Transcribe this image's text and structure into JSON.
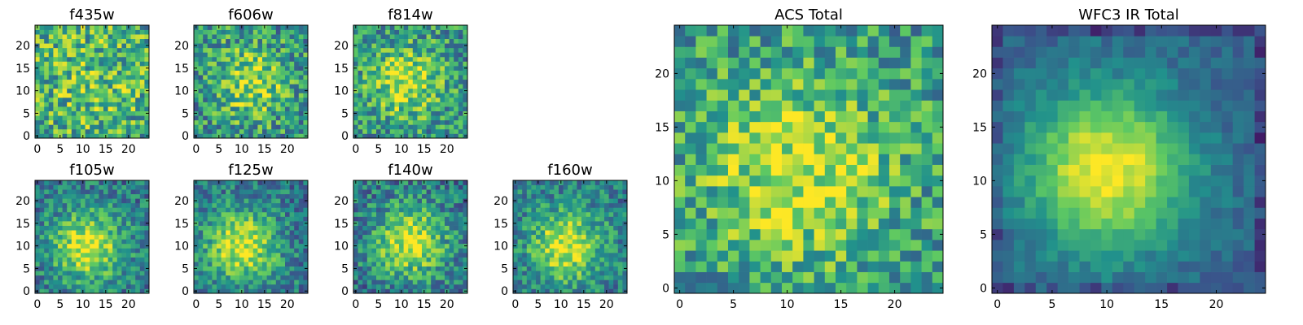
{
  "chart_data": {
    "type": "heatmap",
    "colormap": "viridis",
    "colormap_stops": [
      "#440154",
      "#3b528b",
      "#21918c",
      "#5ec962",
      "#fde725"
    ],
    "background": "#ffffff",
    "panels": [
      {
        "title": "f435w",
        "grid": 25,
        "xticks": [
          "0",
          "5",
          "10",
          "15",
          "20"
        ],
        "yticks": [
          "0",
          "5",
          "10",
          "15",
          "20"
        ],
        "pattern": {
          "center": [
            12,
            12
          ],
          "sigma": 10,
          "peak": 0.72,
          "base": 0.58,
          "noise": 0.32,
          "seed": 11
        }
      },
      {
        "title": "f606w",
        "grid": 25,
        "xticks": [
          "0",
          "5",
          "10",
          "15",
          "20"
        ],
        "yticks": [
          "0",
          "5",
          "10",
          "15",
          "20"
        ],
        "pattern": {
          "center": [
            12,
            12
          ],
          "sigma": 6,
          "peak": 0.85,
          "base": 0.5,
          "noise": 0.3,
          "seed": 23
        }
      },
      {
        "title": "f814w",
        "grid": 25,
        "xticks": [
          "0",
          "5",
          "10",
          "15",
          "20"
        ],
        "yticks": [
          "0",
          "5",
          "10",
          "15",
          "20"
        ],
        "pattern": {
          "center": [
            11,
            12
          ],
          "sigma": 6,
          "peak": 0.88,
          "base": 0.5,
          "noise": 0.28,
          "seed": 37
        }
      },
      {
        "title": "f105w",
        "grid": 25,
        "xticks": [
          "0",
          "5",
          "10",
          "15",
          "20"
        ],
        "yticks": [
          "0",
          "5",
          "10",
          "15",
          "20"
        ],
        "pattern": {
          "center": [
            11,
            10
          ],
          "sigma": 5.5,
          "peak": 0.95,
          "base": 0.4,
          "noise": 0.22,
          "seed": 41
        }
      },
      {
        "title": "f125w",
        "grid": 25,
        "xticks": [
          "0",
          "5",
          "10",
          "15",
          "20"
        ],
        "yticks": [
          "0",
          "5",
          "10",
          "15",
          "20"
        ],
        "pattern": {
          "center": [
            10,
            10
          ],
          "sigma": 5.5,
          "peak": 0.95,
          "base": 0.4,
          "noise": 0.22,
          "seed": 53
        }
      },
      {
        "title": "f140w",
        "grid": 25,
        "xticks": [
          "0",
          "5",
          "10",
          "15",
          "20"
        ],
        "yticks": [
          "0",
          "5",
          "10",
          "15",
          "20"
        ],
        "pattern": {
          "center": [
            12,
            11
          ],
          "sigma": 5.5,
          "peak": 0.95,
          "base": 0.4,
          "noise": 0.24,
          "seed": 67
        }
      },
      {
        "title": "f160w",
        "grid": 25,
        "xticks": [
          "0",
          "5",
          "10",
          "15",
          "20"
        ],
        "yticks": [
          "0",
          "5",
          "10",
          "15",
          "20"
        ],
        "pattern": {
          "center": [
            11,
            10
          ],
          "sigma": 5.5,
          "peak": 0.95,
          "base": 0.42,
          "noise": 0.22,
          "seed": 79
        }
      },
      {
        "title": "ACS Total",
        "grid": 25,
        "xticks": [
          "0",
          "5",
          "10",
          "15",
          "20"
        ],
        "yticks": [
          "0",
          "5",
          "10",
          "15",
          "20"
        ],
        "pattern": {
          "center": [
            11,
            11
          ],
          "sigma": 6.5,
          "peak": 0.9,
          "base": 0.52,
          "noise": 0.26,
          "seed": 97
        }
      },
      {
        "title": "WFC3 IR Total",
        "grid": 25,
        "xticks": [
          "0",
          "5",
          "10",
          "15",
          "20"
        ],
        "yticks": [
          "0",
          "5",
          "10",
          "15",
          "20"
        ],
        "pattern": {
          "center": [
            10,
            11
          ],
          "sigma": 5.2,
          "peak": 1.0,
          "base": 0.32,
          "noise": 0.09,
          "seed": 113
        }
      }
    ]
  }
}
